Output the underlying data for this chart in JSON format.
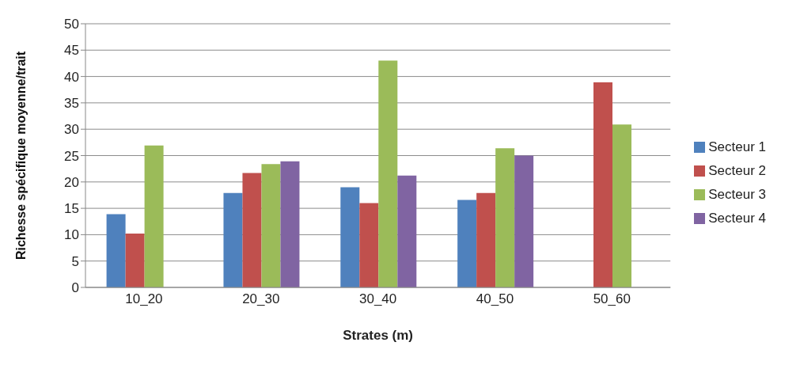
{
  "chart_data": {
    "type": "bar",
    "xlabel": "Strates (m)",
    "ylabel": "Richesse spécifique moyenne/trait",
    "categories": [
      "10_20",
      "20_30",
      "30_40",
      "40_50",
      "50_60"
    ],
    "series": [
      {
        "name": "Secteur 1",
        "color": "#4f81bd",
        "values": [
          13.9,
          17.9,
          19.0,
          16.6,
          null
        ]
      },
      {
        "name": "Secteur 2",
        "color": "#c0504d",
        "values": [
          10.2,
          21.7,
          16.0,
          17.9,
          38.9
        ]
      },
      {
        "name": "Secteur 3",
        "color": "#9bbb59",
        "values": [
          26.9,
          23.4,
          43.0,
          26.4,
          30.9
        ]
      },
      {
        "name": "Secteur 4",
        "color": "#8064a2",
        "values": [
          null,
          23.9,
          21.2,
          25.0,
          null
        ]
      }
    ],
    "ylim": [
      0,
      50
    ],
    "yticks": [
      0,
      5,
      10,
      15,
      20,
      25,
      30,
      35,
      40,
      45,
      50
    ],
    "grid": "y",
    "legend": "right"
  }
}
